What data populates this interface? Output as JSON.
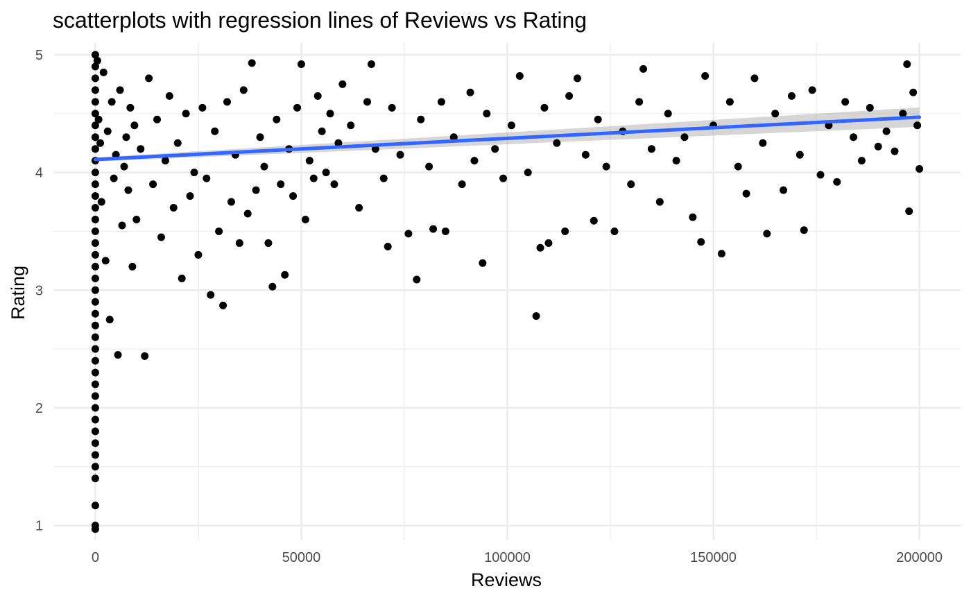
{
  "chart_data": {
    "type": "scatter",
    "title": "scatterplots with regression lines of Reviews vs Rating",
    "xlabel": "Reviews",
    "ylabel": "Rating",
    "xlim": [
      -10000,
      210000
    ],
    "ylim": [
      0.88,
      5.1
    ],
    "x_ticks": [
      0,
      50000,
      100000,
      150000,
      200000
    ],
    "x_tick_labels": [
      "0",
      "50000",
      "100000",
      "150000",
      "200000"
    ],
    "y_ticks": [
      1,
      2,
      3,
      4,
      5
    ],
    "y_tick_labels": [
      "1",
      "2",
      "3",
      "4",
      "5"
    ],
    "grid": true,
    "legend": "none",
    "point_color": "#000000",
    "regression_line": {
      "color": "#3366ff",
      "x": [
        0,
        200000
      ],
      "y": [
        4.11,
        4.47
      ],
      "confidence_band_color": "#999999"
    },
    "points": [
      [
        0,
        5.0
      ],
      [
        0,
        4.9
      ],
      [
        0,
        4.8
      ],
      [
        0,
        4.7
      ],
      [
        0,
        4.6
      ],
      [
        0,
        4.5
      ],
      [
        0,
        4.4
      ],
      [
        0,
        4.3
      ],
      [
        0,
        4.2
      ],
      [
        0,
        4.1
      ],
      [
        0,
        4.0
      ],
      [
        0,
        3.9
      ],
      [
        0,
        3.8
      ],
      [
        0,
        3.7
      ],
      [
        0,
        3.6
      ],
      [
        0,
        3.5
      ],
      [
        0,
        3.4
      ],
      [
        0,
        3.3
      ],
      [
        0,
        3.2
      ],
      [
        0,
        3.1
      ],
      [
        0,
        3.0
      ],
      [
        0,
        2.9
      ],
      [
        0,
        2.8
      ],
      [
        0,
        2.7
      ],
      [
        0,
        2.6
      ],
      [
        0,
        2.5
      ],
      [
        0,
        2.4
      ],
      [
        0,
        2.3
      ],
      [
        0,
        2.2
      ],
      [
        0,
        2.1
      ],
      [
        0,
        2.0
      ],
      [
        0,
        1.9
      ],
      [
        0,
        1.8
      ],
      [
        0,
        1.7
      ],
      [
        0,
        1.6
      ],
      [
        0,
        1.5
      ],
      [
        0,
        1.4
      ],
      [
        0,
        1.17
      ],
      [
        0,
        1.0
      ],
      [
        0,
        0.97
      ],
      [
        500,
        4.95
      ],
      [
        800,
        4.45
      ],
      [
        1200,
        4.25
      ],
      [
        1500,
        3.75
      ],
      [
        2000,
        4.85
      ],
      [
        2500,
        3.25
      ],
      [
        3000,
        4.35
      ],
      [
        3500,
        2.75
      ],
      [
        4000,
        4.6
      ],
      [
        4500,
        3.95
      ],
      [
        5000,
        4.15
      ],
      [
        5500,
        2.45
      ],
      [
        6000,
        4.7
      ],
      [
        6500,
        3.55
      ],
      [
        7000,
        4.05
      ],
      [
        7500,
        4.3
      ],
      [
        8000,
        3.85
      ],
      [
        8500,
        4.55
      ],
      [
        9000,
        3.2
      ],
      [
        9500,
        4.4
      ],
      [
        10000,
        3.6
      ],
      [
        11000,
        4.2
      ],
      [
        12000,
        2.44
      ],
      [
        13000,
        4.8
      ],
      [
        14000,
        3.9
      ],
      [
        15000,
        4.45
      ],
      [
        16000,
        3.45
      ],
      [
        17000,
        4.1
      ],
      [
        18000,
        4.65
      ],
      [
        19000,
        3.7
      ],
      [
        20000,
        4.25
      ],
      [
        21000,
        3.1
      ],
      [
        22000,
        4.5
      ],
      [
        23000,
        3.8
      ],
      [
        24000,
        4.0
      ],
      [
        25000,
        3.3
      ],
      [
        26000,
        4.55
      ],
      [
        27000,
        3.95
      ],
      [
        28000,
        2.96
      ],
      [
        29000,
        4.35
      ],
      [
        30000,
        3.5
      ],
      [
        31000,
        2.87
      ],
      [
        32000,
        4.6
      ],
      [
        33000,
        3.75
      ],
      [
        34000,
        4.15
      ],
      [
        35000,
        3.4
      ],
      [
        36000,
        4.7
      ],
      [
        37000,
        3.65
      ],
      [
        38000,
        4.93
      ],
      [
        39000,
        3.85
      ],
      [
        40000,
        4.3
      ],
      [
        41000,
        4.05
      ],
      [
        42000,
        3.4
      ],
      [
        43000,
        3.03
      ],
      [
        44000,
        4.45
      ],
      [
        45000,
        3.9
      ],
      [
        46000,
        3.13
      ],
      [
        47000,
        4.2
      ],
      [
        48000,
        3.8
      ],
      [
        49000,
        4.55
      ],
      [
        50000,
        4.92
      ],
      [
        51000,
        3.6
      ],
      [
        52000,
        4.1
      ],
      [
        53000,
        3.95
      ],
      [
        54000,
        4.65
      ],
      [
        55000,
        4.35
      ],
      [
        56000,
        4.0
      ],
      [
        57000,
        4.5
      ],
      [
        58000,
        3.9
      ],
      [
        59000,
        4.25
      ],
      [
        60000,
        4.75
      ],
      [
        62000,
        4.4
      ],
      [
        64000,
        3.7
      ],
      [
        66000,
        4.6
      ],
      [
        67000,
        4.92
      ],
      [
        68000,
        4.2
      ],
      [
        70000,
        3.95
      ],
      [
        71000,
        3.37
      ],
      [
        72000,
        4.55
      ],
      [
        74000,
        4.15
      ],
      [
        76000,
        3.48
      ],
      [
        78000,
        3.09
      ],
      [
        79000,
        4.45
      ],
      [
        81000,
        4.05
      ],
      [
        82000,
        3.52
      ],
      [
        84000,
        4.6
      ],
      [
        85000,
        3.5
      ],
      [
        87000,
        4.3
      ],
      [
        89000,
        3.9
      ],
      [
        91000,
        4.68
      ],
      [
        92000,
        4.1
      ],
      [
        94000,
        3.23
      ],
      [
        95000,
        4.5
      ],
      [
        97000,
        4.2
      ],
      [
        99000,
        3.95
      ],
      [
        101000,
        4.4
      ],
      [
        103000,
        4.82
      ],
      [
        105000,
        4.0
      ],
      [
        107000,
        2.78
      ],
      [
        108000,
        3.36
      ],
      [
        109000,
        4.55
      ],
      [
        110000,
        3.4
      ],
      [
        112000,
        4.25
      ],
      [
        114000,
        3.5
      ],
      [
        115000,
        4.65
      ],
      [
        117000,
        4.8
      ],
      [
        119000,
        4.15
      ],
      [
        121000,
        3.59
      ],
      [
        122000,
        4.45
      ],
      [
        124000,
        4.05
      ],
      [
        126000,
        3.5
      ],
      [
        128000,
        4.35
      ],
      [
        130000,
        3.9
      ],
      [
        132000,
        4.6
      ],
      [
        133000,
        4.88
      ],
      [
        135000,
        4.2
      ],
      [
        137000,
        3.75
      ],
      [
        139000,
        4.5
      ],
      [
        141000,
        4.1
      ],
      [
        143000,
        4.3
      ],
      [
        145000,
        3.62
      ],
      [
        147000,
        3.41
      ],
      [
        148000,
        4.82
      ],
      [
        150000,
        4.4
      ],
      [
        152000,
        3.31
      ],
      [
        154000,
        4.6
      ],
      [
        156000,
        4.05
      ],
      [
        158000,
        3.82
      ],
      [
        160000,
        4.8
      ],
      [
        162000,
        4.25
      ],
      [
        163000,
        3.48
      ],
      [
        165000,
        4.5
      ],
      [
        167000,
        3.85
      ],
      [
        169000,
        4.65
      ],
      [
        171000,
        4.15
      ],
      [
        172000,
        3.51
      ],
      [
        174000,
        4.7
      ],
      [
        176000,
        3.98
      ],
      [
        178000,
        4.4
      ],
      [
        180000,
        3.92
      ],
      [
        182000,
        4.6
      ],
      [
        184000,
        4.3
      ],
      [
        186000,
        4.1
      ],
      [
        188000,
        4.55
      ],
      [
        190000,
        4.22
      ],
      [
        192000,
        4.35
      ],
      [
        194000,
        4.18
      ],
      [
        196000,
        4.5
      ],
      [
        197000,
        4.92
      ],
      [
        197500,
        3.67
      ],
      [
        198500,
        4.68
      ],
      [
        199500,
        4.4
      ],
      [
        200000,
        4.03
      ]
    ]
  }
}
